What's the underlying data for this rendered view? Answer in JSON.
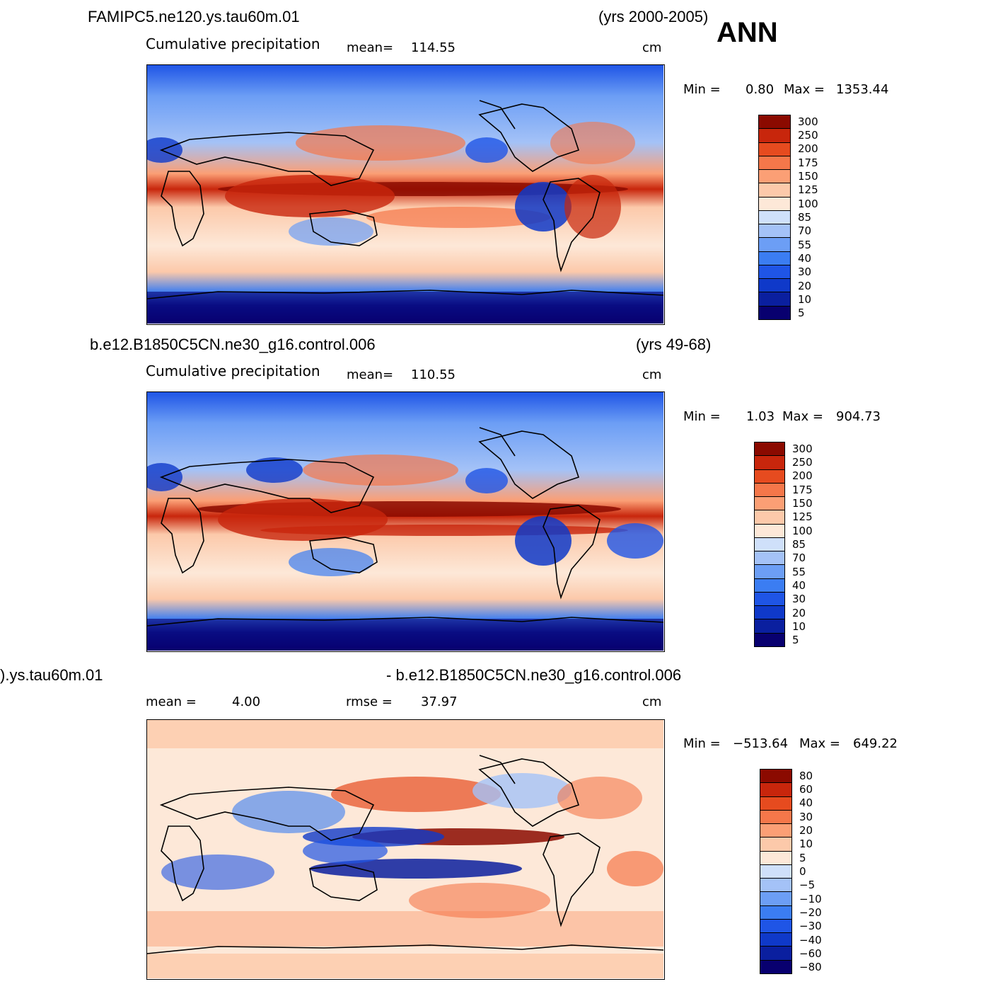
{
  "season": "ANN",
  "colors": {
    "levels": [
      "#08006f",
      "#0a1f9f",
      "#0f39c9",
      "#1f55e6",
      "#3b7df2",
      "#6c9ef5",
      "#a4c2f7",
      "#cfe0fa",
      "#fde8d8",
      "#fcc9aa",
      "#fb9f75",
      "#f5774a",
      "#e64b1f",
      "#c8260c",
      "#8b0a00"
    ]
  },
  "panels": [
    {
      "case_title": "FAMIPC5.ne120.ys.tau60m.01",
      "years": "(yrs 2000-2005)",
      "variable": "Cumulative precipitation",
      "mean_label": "mean=",
      "mean_value": "114.55",
      "units": "cm",
      "min_label": "Min =",
      "min_value": "0.80",
      "max_label": "Max =",
      "max_value": "1353.44",
      "colorbar_labels": [
        "300",
        "250",
        "200",
        "175",
        "150",
        "125",
        "100",
        "85",
        "70",
        "55",
        "40",
        "30",
        "20",
        "10",
        "5"
      ]
    },
    {
      "case_title": "b.e12.B1850C5CN.ne30_g16.control.006",
      "years": "(yrs 49-68)",
      "variable": "Cumulative precipitation",
      "mean_label": "mean=",
      "mean_value": "110.55",
      "units": "cm",
      "min_label": "Min =",
      "min_value": "1.03",
      "max_label": "Max =",
      "max_value": "904.73",
      "colorbar_labels": [
        "300",
        "250",
        "200",
        "175",
        "150",
        "125",
        "100",
        "85",
        "70",
        "55",
        "40",
        "30",
        "20",
        "10",
        "5"
      ]
    },
    {
      "case_title_left": ").ys.tau60m.01",
      "case_title_right": "- b.e12.B1850C5CN.ne30_g16.control.006",
      "mean_label": "mean =",
      "mean_value": "4.00",
      "rmse_label": "rmse =",
      "rmse_value": "37.97",
      "units": "cm",
      "min_label": "Min =",
      "min_value": "−513.64",
      "max_label": "Max =",
      "max_value": "649.22",
      "colorbar_labels": [
        "80",
        "60",
        "40",
        "30",
        "20",
        "10",
        "5",
        "0",
        "−5",
        "−10",
        "−20",
        "−30",
        "−40",
        "−60",
        "−80"
      ]
    }
  ]
}
